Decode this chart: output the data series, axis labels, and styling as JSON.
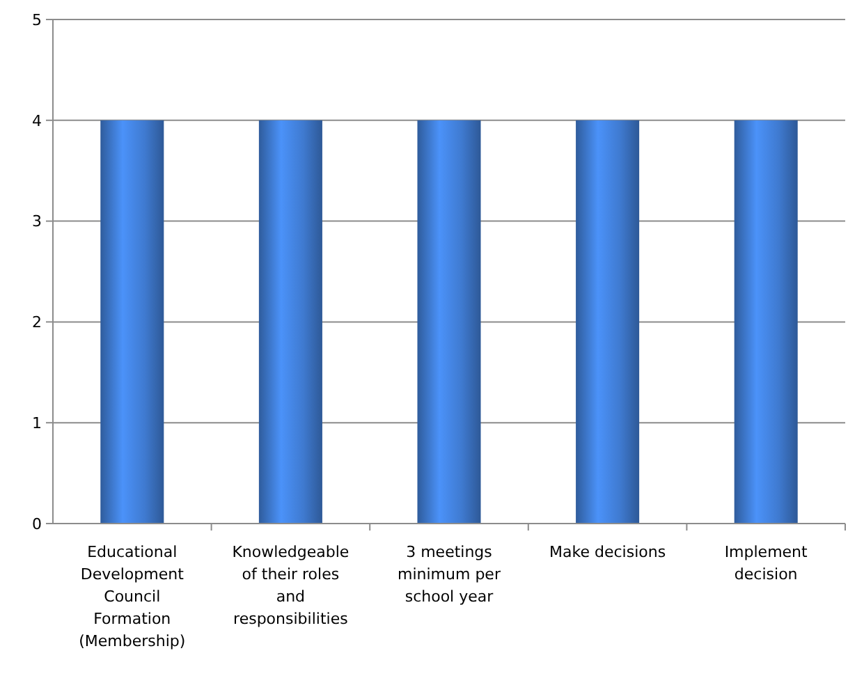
{
  "chart_data": {
    "type": "bar",
    "categories": [
      "Educational Development Council Formation (Membership)",
      "Knowledgeable of their roles and responsibilities",
      "3 meetings minimum per school year",
      "Make decisions",
      "Implement decision"
    ],
    "values": [
      4,
      4,
      4,
      4,
      4
    ],
    "color": "#3f7ad0",
    "ylim": [
      0,
      5
    ],
    "yticks": [
      0,
      1,
      2,
      3,
      4,
      5
    ],
    "grid": "y"
  }
}
